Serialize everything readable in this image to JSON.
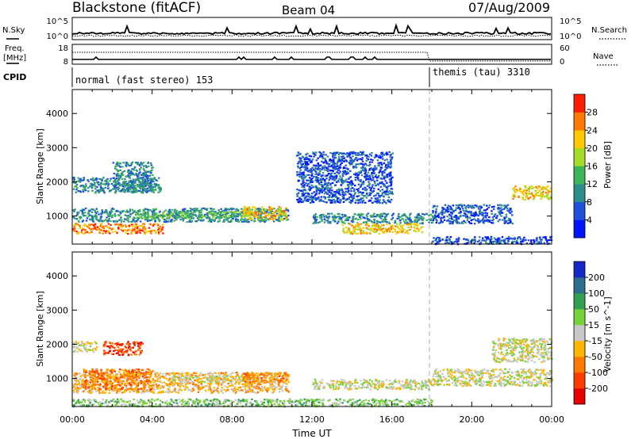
{
  "header": {
    "station": "Blackstone (fitACF)",
    "beam": "Beam 04",
    "date": "07/Aug/2009"
  },
  "top_panel": {
    "left_label": "N.Sky",
    "left_ticks": [
      "10^5",
      "10^0"
    ],
    "right_label": "N.Search",
    "right_ticks": [
      "10^5",
      "10^0"
    ]
  },
  "freq_panel": {
    "left_label_1": "Freq.",
    "left_label_2": "[MHz]",
    "left_ticks": [
      "18",
      "8"
    ],
    "right_label": "Nave",
    "right_ticks": [
      "60",
      "0"
    ]
  },
  "cpid_panel": {
    "label": "CPID",
    "mode_1": "normal (fast stereo) 153",
    "mode_2": "themis (tau) 3310",
    "mode_change_hour": 18.0
  },
  "chart_data": [
    {
      "type": "heatmap",
      "name": "power",
      "xlabel": "Time UT",
      "ylabel": "Slant Range [km]",
      "x_ticks": [
        "00:00",
        "04:00",
        "08:00",
        "12:00",
        "16:00",
        "20:00",
        "00:00"
      ],
      "x_range_hours": [
        0,
        24
      ],
      "y_ticks": [
        1000,
        2000,
        3000,
        4000
      ],
      "y_range_km": [
        180,
        4700
      ],
      "colorbar_label": "Power [dB]",
      "colorbar_ticks": [
        "4",
        "8",
        "12",
        "16",
        "20",
        "24",
        "28"
      ],
      "colorbar_colors": [
        "#0014ff",
        "#1e50dc",
        "#2d8c8c",
        "#3cb45a",
        "#a5dc28",
        "#ffc800",
        "#ff7800",
        "#ff1e00"
      ],
      "regions": [
        {
          "t0": 0.0,
          "t1": 4.4,
          "r0": 1700,
          "r1": 2150,
          "level": 2
        },
        {
          "t0": 2.0,
          "t1": 4.0,
          "r0": 1700,
          "r1": 2600,
          "level": 2
        },
        {
          "t0": 0.0,
          "t1": 10.8,
          "r0": 850,
          "r1": 1250,
          "level": 2
        },
        {
          "t0": 0.0,
          "t1": 4.5,
          "r0": 500,
          "r1": 800,
          "level": 6
        },
        {
          "t0": 3.0,
          "t1": 9.0,
          "r0": 950,
          "r1": 1150,
          "level": 3
        },
        {
          "t0": 8.5,
          "t1": 10.7,
          "r0": 900,
          "r1": 1300,
          "level": 5
        },
        {
          "t0": 11.2,
          "t1": 16.0,
          "r0": 1400,
          "r1": 2900,
          "level": 1
        },
        {
          "t0": 12.0,
          "t1": 18.0,
          "r0": 800,
          "r1": 1100,
          "level": 2
        },
        {
          "t0": 13.5,
          "t1": 17.5,
          "r0": 500,
          "r1": 800,
          "level": 5
        },
        {
          "t0": 18.0,
          "t1": 22.0,
          "r0": 800,
          "r1": 1350,
          "level": 1
        },
        {
          "t0": 22.0,
          "t1": 24.0,
          "r0": 1500,
          "r1": 1900,
          "level": 5
        },
        {
          "t0": 18.0,
          "t1": 24.0,
          "r0": 200,
          "r1": 420,
          "level": 1
        }
      ]
    },
    {
      "type": "heatmap",
      "name": "velocity",
      "xlabel": "Time UT",
      "ylabel": "Slant Range [km]",
      "x_ticks": [
        "00:00",
        "04:00",
        "08:00",
        "12:00",
        "16:00",
        "20:00",
        "00:00"
      ],
      "x_range_hours": [
        0,
        24
      ],
      "y_ticks": [
        1000,
        2000,
        3000,
        4000
      ],
      "y_range_km": [
        180,
        4700
      ],
      "colorbar_label": "Velocity [m s^-1]",
      "colorbar_ticks": [
        "200",
        "100",
        "50",
        "15",
        "-15",
        "-50",
        "-100",
        "-200"
      ],
      "colorbar_colors": [
        "#1428c8",
        "#2d6e8c",
        "#32a050",
        "#78d23c",
        "#c8c8c8",
        "#ffb400",
        "#ff7800",
        "#ff3c00",
        "#e60000"
      ],
      "regions": [
        {
          "t0": 0.0,
          "t1": 10.8,
          "r0": 600,
          "r1": 1200,
          "level": 5
        },
        {
          "t0": 0.5,
          "t1": 4.0,
          "r0": 700,
          "r1": 1300,
          "level": 6
        },
        {
          "t0": 1.5,
          "t1": 3.5,
          "r0": 1700,
          "r1": 2100,
          "level": 7
        },
        {
          "t0": 0.0,
          "t1": 1.2,
          "r0": 1800,
          "r1": 2100,
          "level": 4
        },
        {
          "t0": 5.0,
          "t1": 9.0,
          "r0": 900,
          "r1": 1100,
          "level": 4
        },
        {
          "t0": 8.5,
          "t1": 10.7,
          "r0": 900,
          "r1": 1200,
          "level": 6
        },
        {
          "t0": 12.0,
          "t1": 18.0,
          "r0": 700,
          "r1": 1000,
          "level": 4
        },
        {
          "t0": 18.0,
          "t1": 24.0,
          "r0": 800,
          "r1": 1300,
          "level": 4
        },
        {
          "t0": 21.0,
          "t1": 24.0,
          "r0": 1500,
          "r1": 2200,
          "level": 4
        },
        {
          "t0": 0.0,
          "t1": 18.0,
          "r0": 200,
          "r1": 420,
          "level": 3
        }
      ]
    }
  ]
}
